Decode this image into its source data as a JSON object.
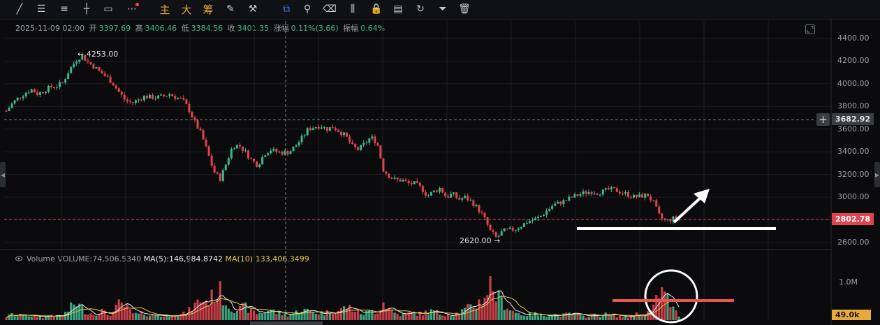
{
  "toolbar": {
    "tools": [
      {
        "name": "trend-line-icon",
        "glyph": "╱"
      },
      {
        "name": "horizontal-lines-icon",
        "glyph": "☰"
      },
      {
        "name": "parallel-lines-icon",
        "glyph": "≡"
      },
      {
        "name": "horizontal-ray-icon",
        "glyph": "┼"
      },
      {
        "name": "rectangle-icon",
        "glyph": "▭"
      },
      {
        "name": "more-icon",
        "glyph": "⋯",
        "dot": true
      },
      {
        "name": "main-force-button",
        "glyph": "主",
        "cjk": true
      },
      {
        "name": "big-order-button",
        "glyph": "大",
        "cjk": true
      },
      {
        "name": "chip-distribution-button",
        "glyph": "筹",
        "cjk": true
      },
      {
        "name": "edit-drawing-icon",
        "glyph": "✎"
      },
      {
        "name": "magic-wand-icon",
        "glyph": "⚒"
      },
      {
        "name": "magnet-icon",
        "glyph": "⧉",
        "active": true
      },
      {
        "name": "ruler-icon",
        "glyph": "⚲"
      },
      {
        "name": "eraser-icon",
        "glyph": "⌫"
      },
      {
        "name": "candlestick-style-icon",
        "glyph": "⫼"
      },
      {
        "name": "lock-icon",
        "glyph": "🔒"
      },
      {
        "name": "notes-icon",
        "glyph": "▤"
      },
      {
        "name": "refresh-icon",
        "glyph": "↻"
      },
      {
        "name": "filter-icon",
        "glyph": "⏷"
      },
      {
        "name": "trash-icon",
        "glyph": "🗑"
      }
    ]
  },
  "ohlc": {
    "date": "2025-11-09 02:00",
    "open_label": "开",
    "open": "3397.69",
    "high_label": "高",
    "high": "3406.46",
    "low_label": "低",
    "low": "3384.56",
    "close_label": "收",
    "close": "3401.35",
    "change_label": "涨幅",
    "change": "0.11%(3.66)",
    "amplitude_label": "振幅",
    "amplitude": "0.64%"
  },
  "volume": {
    "title": "Volume",
    "value": "VOLUME:74,506.5340",
    "ma5": "MA(5):146,984.8742",
    "ma10": "MA(10):133,406.3499"
  },
  "chart_data": {
    "type": "candlestick",
    "ylim": [
      2480,
      4520
    ],
    "y_ticks": [
      "4400.00",
      "4200.00",
      "4000.00",
      "3800.00",
      "3600.00",
      "3400.00",
      "3200.00",
      "3000.00",
      "2800.00",
      "2600.00"
    ],
    "y_tick_values": [
      4400,
      4200,
      4000,
      3800,
      3600,
      3400,
      3200,
      3000,
      2800,
      2600
    ],
    "volume_ticks": [
      "1.0M"
    ],
    "volume_tick_values": [
      1000000
    ],
    "volume_max": 1450000,
    "crosshair_price": "3682.92",
    "crosshair_price_value": 3682.92,
    "current_price": "2802.78",
    "current_price_value": 2802.78,
    "current_volume": "49.0k",
    "high_marker": "4253.00",
    "high_marker_value": 4253,
    "low_marker": "2620.00",
    "low_marker_value": 2620,
    "price_path": [
      3760,
      3830,
      3880,
      3920,
      3950,
      3910,
      3940,
      3970,
      3980,
      4010,
      4120,
      4200,
      4253,
      4190,
      4150,
      4100,
      4060,
      4000,
      3920,
      3850,
      3830,
      3860,
      3890,
      3880,
      3880,
      3890,
      3910,
      3880,
      3860,
      3780,
      3660,
      3560,
      3400,
      3230,
      3160,
      3300,
      3450,
      3460,
      3400,
      3330,
      3280,
      3380,
      3420,
      3400,
      3390,
      3400,
      3450,
      3520,
      3600,
      3620,
      3630,
      3600,
      3620,
      3580,
      3540,
      3450,
      3420,
      3470,
      3530,
      3480,
      3240,
      3180,
      3150,
      3150,
      3120,
      3120,
      3080,
      3010,
      3050,
      3080,
      3000,
      3030,
      2980,
      3000,
      2960,
      2900,
      2820,
      2700,
      2640,
      2700,
      2710,
      2720,
      2750,
      2790,
      2800,
      2830,
      2880,
      2930,
      2950,
      2970,
      3000,
      3020,
      3040,
      3050,
      3040,
      3050,
      3070,
      3060,
      3040,
      3020,
      3000,
      3010,
      3020,
      2950,
      2820,
      2790,
      2810,
      2820
    ],
    "volume_path": [
      0.1,
      0.2,
      0.12,
      0.25,
      0.1,
      0.15,
      0.08,
      0.2,
      0.12,
      0.15,
      0.35,
      0.6,
      0.4,
      0.25,
      0.2,
      0.35,
      0.18,
      0.25,
      0.55,
      0.45,
      0.22,
      0.18,
      0.25,
      0.15,
      0.2,
      0.12,
      0.18,
      0.22,
      0.18,
      0.3,
      0.5,
      0.7,
      0.62,
      0.82,
      0.95,
      0.55,
      0.4,
      0.35,
      0.45,
      0.3,
      0.22,
      0.28,
      0.35,
      0.25,
      0.2,
      0.18,
      0.25,
      0.35,
      0.3,
      0.28,
      0.22,
      0.25,
      0.35,
      0.3,
      0.45,
      0.4,
      0.25,
      0.22,
      0.3,
      0.28,
      0.6,
      0.35,
      0.22,
      0.18,
      0.22,
      0.25,
      0.2,
      0.28,
      0.3,
      0.2,
      0.22,
      0.18,
      0.25,
      0.35,
      0.45,
      0.55,
      0.75,
      1.2,
      0.8,
      0.6,
      0.4,
      0.25,
      0.2,
      0.18,
      0.22,
      0.15,
      0.18,
      0.2,
      0.15,
      0.18,
      0.22,
      0.15,
      0.12,
      0.18,
      0.15,
      0.2,
      0.18,
      0.15,
      0.12,
      0.1,
      0.22,
      0.18,
      0.25,
      0.4,
      1.0,
      0.8,
      0.4,
      0.15
    ]
  },
  "colors": {
    "up": "#3fb68b",
    "down": "#e0444f",
    "ma5": "#e9e9ea",
    "ma10": "#e6c94a",
    "crosshair_tag_bg": "#3a3d44",
    "price_tag_bg": "#e0444f",
    "volume_tag_bg": "#e8a93a",
    "annotation_white": "#ffffff",
    "annotation_red": "#e85454"
  }
}
